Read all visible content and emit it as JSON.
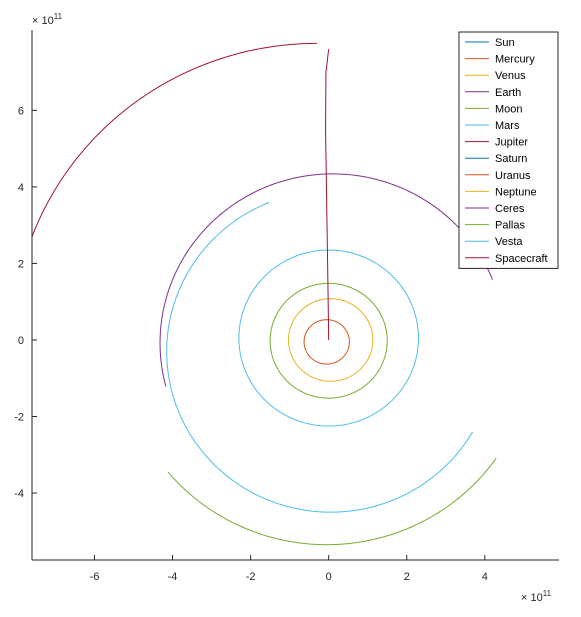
{
  "chart_data": {
    "type": "line",
    "title": "",
    "xlabel": "",
    "ylabel": "",
    "xlim": [
      -7.6,
      5.9
    ],
    "ylim": [
      -5.75,
      8.1
    ],
    "x_exponent": {
      "base": "× 10",
      "power": "11"
    },
    "y_exponent": {
      "base": "× 10",
      "power": "11"
    },
    "x_ticks": [
      -6,
      -4,
      -2,
      0,
      2,
      4
    ],
    "y_ticks": [
      -4,
      -2,
      0,
      2,
      4,
      6
    ],
    "grid": false,
    "legend_position": "top-right",
    "series": [
      {
        "name": "Sun",
        "color": "#0072BD",
        "shape": "spiral",
        "cx": 0,
        "cy": 0,
        "r0": 0,
        "r1": 0,
        "a0": 0,
        "a1": 0
      },
      {
        "name": "Mercury",
        "color": "#D95319",
        "shape": "spiral",
        "cx": -0.05,
        "cy": -0.05,
        "r0": 0.58,
        "r1": 0.58,
        "a0": 0,
        "a1": 360
      },
      {
        "name": "Venus",
        "color": "#EDB120",
        "shape": "spiral",
        "cx": 0.05,
        "cy": 0.0,
        "r0": 1.08,
        "r1": 1.08,
        "a0": 0,
        "a1": 360
      },
      {
        "name": "Earth",
        "color": "#7E2F8E",
        "shape": "spiral",
        "cx": 0.1,
        "cy": -0.08,
        "r0": 4.42,
        "r1": 4.42,
        "a0": 22,
        "a1": 195
      },
      {
        "name": "Moon",
        "color": "#77AC30",
        "shape": "spiral",
        "cx": 0,
        "cy": -0.02,
        "r0": 1.5,
        "r1": 1.5,
        "a0": 0,
        "a1": 360
      },
      {
        "name": "Mars",
        "color": "#4DBEEE",
        "shape": "spiral",
        "cx": 0,
        "cy": 0.05,
        "r0": 2.3,
        "r1": 2.3,
        "a0": 0,
        "a1": 360
      },
      {
        "name": "Jupiter",
        "color": "#A2142F",
        "shape": "path",
        "points": [
          [
            0,
            0
          ],
          [
            -0.02,
            1.5
          ],
          [
            -0.05,
            3.5
          ],
          [
            -0.08,
            5.5
          ],
          [
            -0.07,
            7.0
          ],
          [
            0.0,
            7.6
          ]
        ]
      },
      {
        "name": "Saturn",
        "color": "#0072BD",
        "shape": "spiral",
        "cx": 0,
        "cy": 0,
        "r0": 0,
        "r1": 0,
        "a0": 0,
        "a1": 0
      },
      {
        "name": "Uranus",
        "color": "#D95319",
        "shape": "spiral",
        "cx": 0,
        "cy": 0,
        "r0": 0,
        "r1": 0,
        "a0": 0,
        "a1": 0
      },
      {
        "name": "Neptune",
        "color": "#EDB120",
        "shape": "spiral",
        "cx": 0,
        "cy": 0,
        "r0": 0,
        "r1": 0,
        "a0": 0,
        "a1": 0
      },
      {
        "name": "Ceres",
        "color": "#7E2F8E",
        "shape": "spiral",
        "cx": 0,
        "cy": 0,
        "r0": 0,
        "r1": 0,
        "a0": 0,
        "a1": 0
      },
      {
        "name": "Pallas",
        "color": "#77AC30",
        "shape": "spiral",
        "cx": -0.05,
        "cy": -0.05,
        "r0": 5.3,
        "r1": 5.3,
        "a0": -35,
        "a1": -140
      },
      {
        "name": "Vesta",
        "color": "#4DBEEE",
        "shape": "spiral",
        "cx": 0.05,
        "cy": -0.3,
        "r0": 4.2,
        "r1": 4.2,
        "a0": 112,
        "a1": 330
      },
      {
        "name": "Spacecraft",
        "color": "#A2142F",
        "shape": "spiral",
        "cx": -0.3,
        "cy": -0.05,
        "r0": 7.8,
        "r1": 7.8,
        "a0": 90,
        "a1": 162
      }
    ]
  }
}
